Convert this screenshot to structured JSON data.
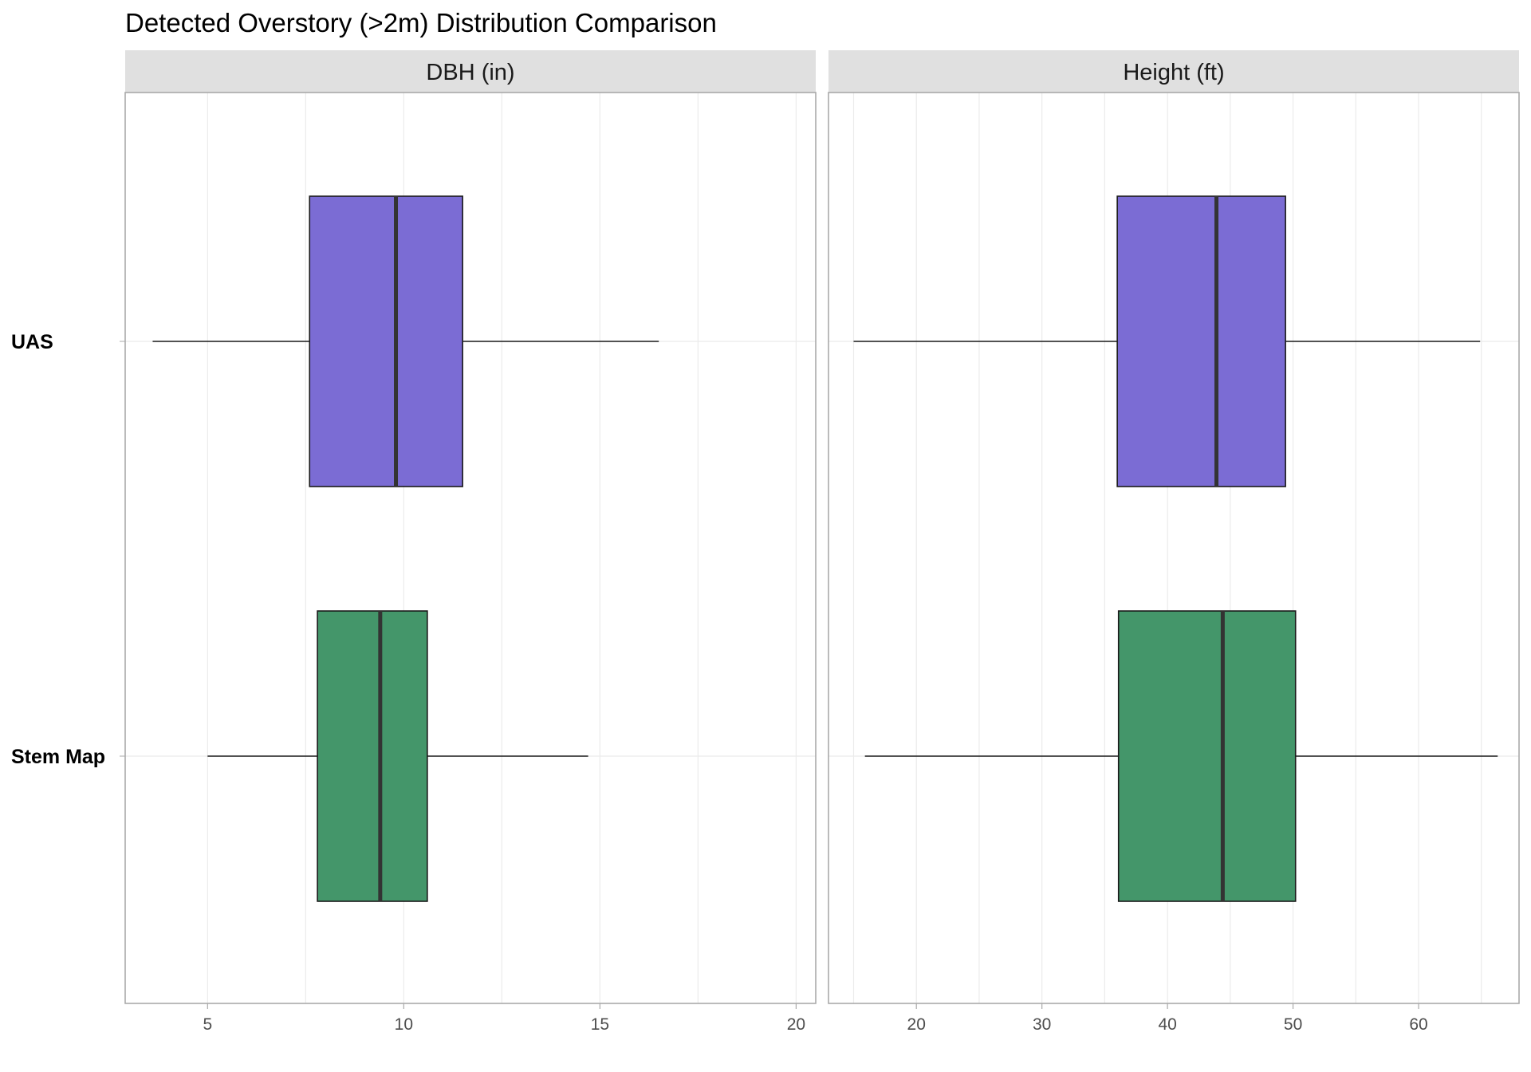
{
  "chart_data": {
    "type": "boxplot",
    "title": "Detected Overstory (>2m) Distribution Comparison",
    "categories": [
      "UAS",
      "Stem Map"
    ],
    "colors": {
      "UAS": "#7b6cd4",
      "Stem Map": "#44966a"
    },
    "panels": [
      {
        "label": "DBH (in)",
        "xlim": [
          2.9,
          20.5
        ],
        "ticks": [
          5,
          10,
          15,
          20
        ],
        "boxes": [
          {
            "category": "UAS",
            "min": 3.6,
            "q1": 7.6,
            "median": 9.8,
            "q3": 11.5,
            "max": 16.5
          },
          {
            "category": "Stem Map",
            "min": 5.0,
            "q1": 7.8,
            "median": 9.4,
            "q3": 10.6,
            "max": 14.7
          }
        ]
      },
      {
        "label": "Height (ft)",
        "xlim": [
          13.0,
          68.0
        ],
        "ticks": [
          20,
          30,
          40,
          50,
          60
        ],
        "boxes": [
          {
            "category": "UAS",
            "min": 15.0,
            "q1": 36.0,
            "median": 43.9,
            "q3": 49.4,
            "max": 64.9
          },
          {
            "category": "Stem Map",
            "min": 15.9,
            "q1": 36.1,
            "median": 44.4,
            "q3": 50.2,
            "max": 66.3
          }
        ]
      }
    ]
  }
}
